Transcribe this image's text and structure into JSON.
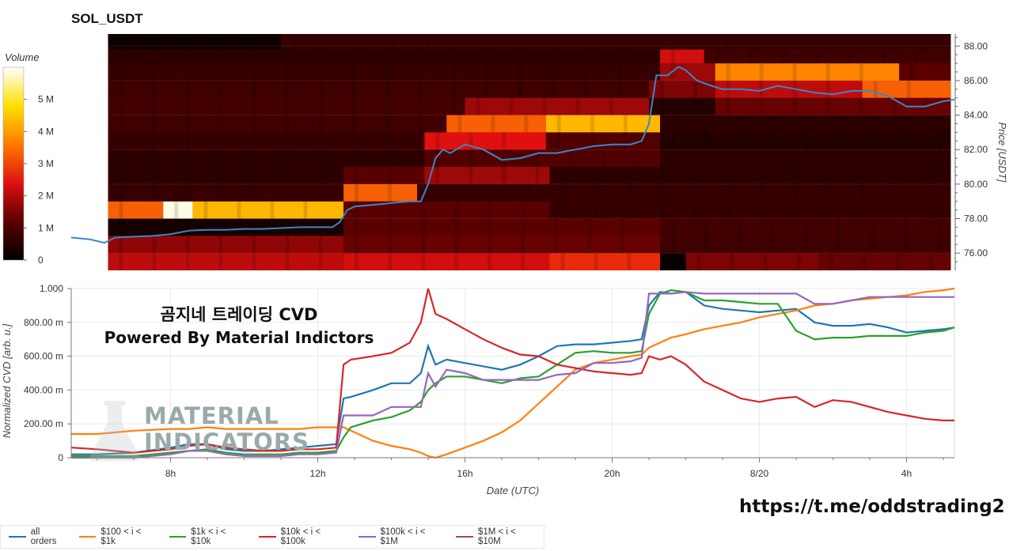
{
  "title": "SOL_USDT",
  "overlay": {
    "line1": "곰지네 트레이딩 CVD",
    "line2": "Powered By Material Indictors",
    "telegram": "https://t.me/oddstrading2",
    "watermark_line1": "MATERIAL",
    "watermark_line2": "INDICATORS"
  },
  "colors": {
    "price_line": "#3b86c6",
    "all_orders": "#1f77b4",
    "o100_1k": "#ff7f0e",
    "o1k_10k": "#2ca02c",
    "o10k_100k": "#d62728",
    "o100k_1m": "#9467bd",
    "o1m_10m": "#8c564b"
  },
  "chart_data": [
    {
      "type": "heatmap",
      "title": "SOL_USDT",
      "colorbar_label": "Volume",
      "colorbar_ticks": [
        "0",
        "1 M",
        "2 M",
        "3 M",
        "4 M",
        "5 M"
      ],
      "colorbar_range": [
        0,
        6000000
      ],
      "ylabel": "Price [USDT]",
      "yticks": [
        "76.00",
        "78.00",
        "80.00",
        "82.00",
        "84.00",
        "86.00",
        "88.00"
      ],
      "ylim": [
        75.0,
        88.7
      ],
      "xlim_hours": [
        5.3,
        29.3
      ],
      "bands": [
        {
          "p": 75.5,
          "segs": [
            [
              6.3,
              12.7,
              0.35
            ],
            [
              12.7,
              18.3,
              0.38
            ],
            [
              18.3,
              21.3,
              0.45
            ],
            [
              21.3,
              22.0,
              0.02
            ],
            [
              22.0,
              25.6,
              0.25
            ],
            [
              25.6,
              29.2,
              0.22
            ]
          ]
        },
        {
          "p": 76.5,
          "segs": [
            [
              6.3,
              12.7,
              0.28
            ],
            [
              12.7,
              21.3,
              0.22
            ],
            [
              21.3,
              29.2,
              0.14
            ]
          ]
        },
        {
          "p": 77.5,
          "segs": [
            [
              6.3,
              12.7,
              0.05
            ],
            [
              12.7,
              21.3,
              0.2
            ],
            [
              21.3,
              29.2,
              0.15
            ]
          ]
        },
        {
          "p": 78.5,
          "segs": [
            [
              6.3,
              7.8,
              0.55
            ],
            [
              7.8,
              8.6,
              0.98
            ],
            [
              8.6,
              12.7,
              0.72
            ],
            [
              12.7,
              18.3,
              0.2
            ],
            [
              18.3,
              29.2,
              0.12
            ]
          ]
        },
        {
          "p": 79.5,
          "segs": [
            [
              6.3,
              12.7,
              0.12
            ],
            [
              12.7,
              14.7,
              0.55
            ],
            [
              14.7,
              29.2,
              0.12
            ]
          ]
        },
        {
          "p": 80.5,
          "segs": [
            [
              6.3,
              12.7,
              0.1
            ],
            [
              12.7,
              14.9,
              0.2
            ],
            [
              14.9,
              18.3,
              0.3
            ],
            [
              18.3,
              29.2,
              0.1
            ]
          ]
        },
        {
          "p": 81.5,
          "segs": [
            [
              6.3,
              14.9,
              0.1
            ],
            [
              14.9,
              21.3,
              0.18
            ],
            [
              21.3,
              29.2,
              0.1
            ]
          ]
        },
        {
          "p": 82.5,
          "segs": [
            [
              6.3,
              14.9,
              0.12
            ],
            [
              14.9,
              18.2,
              0.4
            ],
            [
              18.2,
              21.3,
              0.18
            ],
            [
              21.3,
              29.2,
              0.08
            ]
          ]
        },
        {
          "p": 83.5,
          "segs": [
            [
              6.3,
              15.5,
              0.14
            ],
            [
              15.5,
              18.2,
              0.55
            ],
            [
              18.2,
              21.3,
              0.72
            ],
            [
              21.3,
              29.2,
              0.1
            ]
          ]
        },
        {
          "p": 84.5,
          "segs": [
            [
              6.3,
              16.0,
              0.15
            ],
            [
              16.0,
              21.0,
              0.3
            ],
            [
              21.0,
              22.8,
              0.08
            ],
            [
              22.8,
              29.2,
              0.22
            ]
          ]
        },
        {
          "p": 85.5,
          "segs": [
            [
              6.3,
              21.0,
              0.14
            ],
            [
              21.0,
              22.8,
              0.25
            ],
            [
              22.8,
              26.8,
              0.35
            ],
            [
              26.8,
              29.2,
              0.55
            ]
          ]
        },
        {
          "p": 86.5,
          "segs": [
            [
              6.3,
              21.3,
              0.12
            ],
            [
              21.3,
              22.8,
              0.3
            ],
            [
              22.8,
              27.8,
              0.62
            ],
            [
              27.8,
              29.2,
              0.2
            ]
          ]
        },
        {
          "p": 87.5,
          "segs": [
            [
              6.3,
              21.3,
              0.1
            ],
            [
              21.3,
              22.5,
              0.38
            ],
            [
              22.5,
              29.2,
              0.14
            ]
          ]
        },
        {
          "p": 88.3,
          "segs": [
            [
              6.3,
              11.0,
              0.03
            ],
            [
              11.0,
              29.2,
              0.12
            ]
          ]
        }
      ],
      "price_line": {
        "x": [
          5.3,
          5.8,
          6.2,
          6.5,
          7.0,
          7.5,
          8.0,
          8.5,
          9.0,
          9.5,
          10.0,
          10.5,
          11.0,
          11.5,
          12.0,
          12.4,
          12.6,
          12.8,
          13.0,
          13.5,
          14.0,
          14.5,
          14.8,
          15.0,
          15.2,
          15.4,
          15.6,
          16.0,
          16.5,
          17.0,
          17.5,
          18.0,
          18.5,
          19.0,
          19.5,
          20.0,
          20.5,
          20.8,
          21.0,
          21.2,
          21.5,
          21.8,
          22.0,
          22.3,
          22.7,
          23.0,
          23.5,
          24.0,
          24.5,
          25.0,
          25.5,
          26.0,
          26.5,
          27.0,
          27.5,
          28.0,
          28.5,
          29.0,
          29.3
        ],
        "y": [
          76.9,
          76.8,
          76.6,
          76.9,
          76.95,
          77.0,
          77.1,
          77.3,
          77.35,
          77.35,
          77.4,
          77.4,
          77.45,
          77.5,
          77.5,
          77.5,
          77.8,
          78.5,
          78.7,
          78.8,
          78.9,
          79.0,
          79.0,
          80.0,
          81.5,
          82.0,
          81.8,
          82.3,
          82.0,
          81.4,
          81.5,
          81.8,
          81.8,
          82.0,
          82.2,
          82.3,
          82.3,
          82.5,
          83.5,
          86.3,
          86.3,
          86.8,
          86.6,
          86.0,
          85.7,
          85.5,
          85.5,
          85.4,
          85.7,
          85.5,
          85.3,
          85.2,
          85.4,
          85.4,
          85.1,
          84.5,
          84.5,
          84.8,
          84.9
        ]
      }
    },
    {
      "type": "line",
      "xlabel": "Date (UTC)",
      "ylabel": "Normalized CVD [arb. u.]",
      "yticks": [
        "0",
        "200.00 m",
        "400.00 m",
        "600.00 m",
        "800.00 m",
        "1.000"
      ],
      "ylim": [
        0,
        1.0
      ],
      "xlim_hours": [
        5.3,
        29.3
      ],
      "xticks": [
        {
          "h": 8,
          "label": "8h"
        },
        {
          "h": 12,
          "label": "12h"
        },
        {
          "h": 16,
          "label": "16h"
        },
        {
          "h": 20,
          "label": "20h"
        },
        {
          "h": 24,
          "label": "8/20"
        },
        {
          "h": 28,
          "label": "4h"
        }
      ],
      "x": [
        5.3,
        6.0,
        7.0,
        8.0,
        8.5,
        9.0,
        9.5,
        10.0,
        10.5,
        11.0,
        11.5,
        12.0,
        12.5,
        12.7,
        12.9,
        13.5,
        14.0,
        14.5,
        14.8,
        15.0,
        15.2,
        15.5,
        16.0,
        16.5,
        17.0,
        17.5,
        18.0,
        18.5,
        19.0,
        19.5,
        20.0,
        20.5,
        20.8,
        21.0,
        21.3,
        21.6,
        22.0,
        22.5,
        23.0,
        23.5,
        24.0,
        24.5,
        25.0,
        25.5,
        26.0,
        26.5,
        27.0,
        27.5,
        28.0,
        28.5,
        29.0,
        29.3
      ],
      "series": [
        {
          "name": "all orders",
          "color_key": "all_orders",
          "values": [
            0.02,
            0.02,
            0.03,
            0.06,
            0.08,
            0.08,
            0.05,
            0.04,
            0.04,
            0.05,
            0.06,
            0.07,
            0.08,
            0.35,
            0.36,
            0.4,
            0.44,
            0.44,
            0.5,
            0.66,
            0.55,
            0.58,
            0.56,
            0.54,
            0.52,
            0.55,
            0.6,
            0.66,
            0.67,
            0.67,
            0.68,
            0.69,
            0.7,
            0.9,
            0.98,
            0.97,
            0.98,
            0.9,
            0.88,
            0.87,
            0.86,
            0.87,
            0.88,
            0.8,
            0.78,
            0.78,
            0.79,
            0.77,
            0.74,
            0.75,
            0.76,
            0.77
          ]
        },
        {
          "name": "$100 < i < $1k",
          "color_key": "o100_1k",
          "values": [
            0.14,
            0.14,
            0.16,
            0.17,
            0.17,
            0.18,
            0.17,
            0.17,
            0.17,
            0.17,
            0.17,
            0.18,
            0.18,
            0.18,
            0.16,
            0.1,
            0.07,
            0.05,
            0.03,
            0.01,
            0.0,
            0.02,
            0.06,
            0.1,
            0.15,
            0.22,
            0.32,
            0.42,
            0.52,
            0.56,
            0.58,
            0.6,
            0.61,
            0.65,
            0.68,
            0.71,
            0.73,
            0.76,
            0.78,
            0.8,
            0.83,
            0.85,
            0.87,
            0.9,
            0.91,
            0.93,
            0.94,
            0.95,
            0.96,
            0.98,
            0.99,
            1.0
          ]
        },
        {
          "name": "$1k < i < $10k",
          "color_key": "o1k_10k",
          "values": [
            0.01,
            0.01,
            0.01,
            0.03,
            0.04,
            0.05,
            0.03,
            0.02,
            0.02,
            0.02,
            0.03,
            0.03,
            0.04,
            0.12,
            0.18,
            0.22,
            0.24,
            0.28,
            0.33,
            0.4,
            0.44,
            0.48,
            0.48,
            0.46,
            0.44,
            0.47,
            0.48,
            0.55,
            0.62,
            0.63,
            0.62,
            0.62,
            0.63,
            0.85,
            0.97,
            0.99,
            0.98,
            0.93,
            0.93,
            0.92,
            0.91,
            0.91,
            0.75,
            0.7,
            0.71,
            0.71,
            0.72,
            0.72,
            0.72,
            0.74,
            0.75,
            0.77
          ]
        },
        {
          "name": "$10k < i < $100k",
          "color_key": "o10k_100k",
          "values": [
            0.06,
            0.05,
            0.03,
            0.05,
            0.07,
            0.08,
            0.06,
            0.05,
            0.04,
            0.04,
            0.05,
            0.05,
            0.06,
            0.55,
            0.58,
            0.6,
            0.62,
            0.68,
            0.8,
            1.0,
            0.85,
            0.82,
            0.76,
            0.7,
            0.65,
            0.61,
            0.6,
            0.55,
            0.53,
            0.51,
            0.5,
            0.49,
            0.5,
            0.6,
            0.58,
            0.6,
            0.55,
            0.45,
            0.4,
            0.35,
            0.33,
            0.35,
            0.36,
            0.3,
            0.34,
            0.33,
            0.3,
            0.27,
            0.25,
            0.23,
            0.22,
            0.22
          ]
        },
        {
          "name": "$100k < i < $1M",
          "color_key": "o100k_1m",
          "values": [
            0.0,
            0.0,
            0.0,
            0.02,
            0.04,
            0.04,
            0.02,
            0.01,
            0.01,
            0.01,
            0.02,
            0.02,
            0.03,
            0.25,
            0.25,
            0.25,
            0.3,
            0.3,
            0.3,
            0.5,
            0.42,
            0.52,
            0.5,
            0.46,
            0.46,
            0.46,
            0.46,
            0.49,
            0.5,
            0.56,
            0.56,
            0.57,
            0.59,
            0.97,
            0.97,
            0.97,
            0.98,
            0.97,
            0.97,
            0.97,
            0.97,
            0.97,
            0.97,
            0.91,
            0.91,
            0.93,
            0.95,
            0.95,
            0.95,
            0.95,
            0.95,
            0.95
          ]
        }
      ],
      "legend": [
        {
          "label": "all orders",
          "color_key": "all_orders"
        },
        {
          "label": "$100 < i < $1k",
          "color_key": "o100_1k"
        },
        {
          "label": "$1k < i < $10k",
          "color_key": "o1k_10k"
        },
        {
          "label": "$10k < i < $100k",
          "color_key": "o10k_100k"
        },
        {
          "label": "$100k < i < $1M",
          "color_key": "o100k_1m"
        },
        {
          "label": "$1M < i < $10M",
          "color_key": "o1m_10m"
        }
      ],
      "legend_position": "bottom-left"
    }
  ]
}
